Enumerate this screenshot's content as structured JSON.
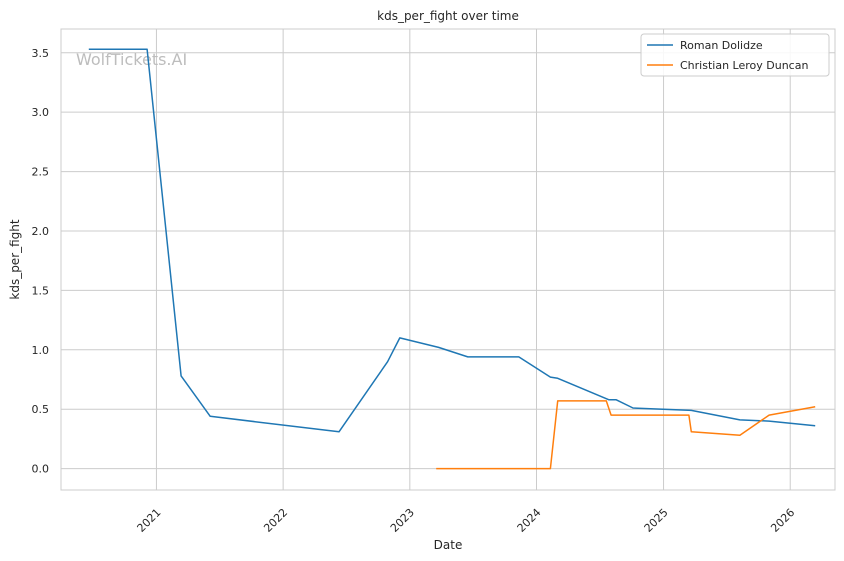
{
  "chart_data": {
    "type": "line",
    "title": "kds_per_fight over time",
    "xlabel": "Date",
    "ylabel": "kds_per_fight",
    "watermark": "WolfTickets.AI",
    "xlim": [
      "2020-04-01",
      "2026-05-10"
    ],
    "ylim": [
      -0.18,
      3.7
    ],
    "x_ticks": [
      "2021-01-01",
      "2022-01-01",
      "2023-01-01",
      "2024-01-01",
      "2025-01-01",
      "2026-01-01"
    ],
    "x_tick_labels": [
      "2021",
      "2022",
      "2023",
      "2024",
      "2025",
      "2026"
    ],
    "y_ticks": [
      0.0,
      0.5,
      1.0,
      1.5,
      2.0,
      2.5,
      3.0,
      3.5
    ],
    "y_tick_labels": [
      "0.0",
      "0.5",
      "1.0",
      "1.5",
      "2.0",
      "2.5",
      "3.0",
      "3.5"
    ],
    "grid": true,
    "legend_position": "top-right",
    "series": [
      {
        "name": "Roman Dolidze",
        "color": "#1f77b4",
        "x": [
          "2020-06-20",
          "2020-12-05",
          "2021-03-13",
          "2021-06-05",
          "2022-06-11",
          "2022-10-29",
          "2022-12-03",
          "2023-03-25",
          "2023-06-17",
          "2023-11-11",
          "2024-02-10",
          "2024-03-02",
          "2024-07-27",
          "2024-08-17",
          "2024-10-05",
          "2025-03-22",
          "2025-08-09",
          "2025-11-01",
          "2026-03-14"
        ],
        "y": [
          3.53,
          3.53,
          0.78,
          0.44,
          0.31,
          0.9,
          1.1,
          1.02,
          0.94,
          0.94,
          0.77,
          0.76,
          0.58,
          0.58,
          0.51,
          0.49,
          0.41,
          0.4,
          0.36
        ]
      },
      {
        "name": "Christian Leroy Duncan",
        "color": "#ff7f0e",
        "x": [
          "2023-03-18",
          "2024-02-10",
          "2024-03-02",
          "2024-07-20",
          "2024-08-03",
          "2025-03-15",
          "2025-03-22",
          "2025-08-09",
          "2025-11-01",
          "2026-03-14"
        ],
        "y": [
          0.0,
          0.0,
          0.57,
          0.57,
          0.45,
          0.45,
          0.31,
          0.28,
          0.45,
          0.52
        ]
      }
    ]
  }
}
